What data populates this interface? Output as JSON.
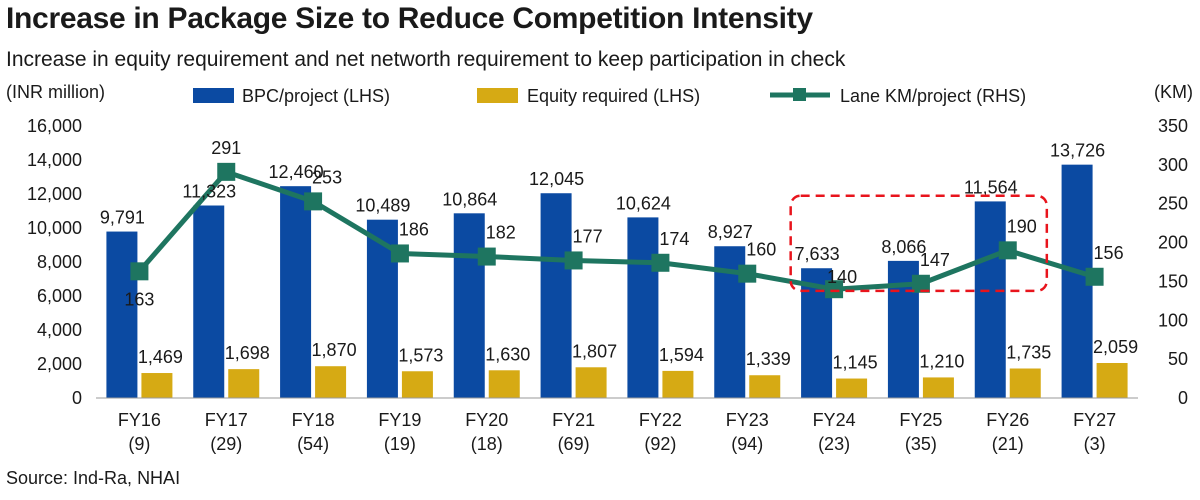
{
  "title": "Increase in Package Size to Reduce Competition Intensity",
  "subtitle": "Increase in equity requirement and net networth requirement to keep participation in check",
  "source": "Source: Ind-Ra, NHAI",
  "chart_data": {
    "type": "bar",
    "left_axis_unit": "(INR million)",
    "right_axis_unit": "(KM)",
    "categories": [
      "FY16",
      "FY17",
      "FY18",
      "FY19",
      "FY20",
      "FY21",
      "FY22",
      "FY23",
      "FY24",
      "FY25",
      "FY26",
      "FY27"
    ],
    "category_counts": [
      "(9)",
      "(29)",
      "(54)",
      "(19)",
      "(18)",
      "(69)",
      "(92)",
      "(94)",
      "(23)",
      "(35)",
      "(21)",
      "(3)"
    ],
    "y_left": {
      "range": [
        0,
        16000
      ],
      "ticks": [
        "0",
        "2,000",
        "4,000",
        "6,000",
        "8,000",
        "10,000",
        "12,000",
        "14,000",
        "16,000"
      ]
    },
    "y_right": {
      "range": [
        0,
        350
      ],
      "ticks": [
        "0",
        "50",
        "100",
        "150",
        "200",
        "250",
        "300",
        "350"
      ]
    },
    "series": [
      {
        "name": "BPC/project (LHS)",
        "kind": "bar",
        "axis": "left",
        "color": "#0b4aa2",
        "values": [
          9791,
          11323,
          12460,
          10489,
          10864,
          12045,
          10624,
          8927,
          7633,
          8066,
          11564,
          13726
        ],
        "labels": [
          "9,791",
          "11,323",
          "12,460",
          "10,489",
          "10,864",
          "12,045",
          "10,624",
          "8,927",
          "7,633",
          "8,066",
          "11,564",
          "13,726"
        ]
      },
      {
        "name": "Equity required (LHS)",
        "kind": "bar",
        "axis": "left",
        "color": "#d6aa14",
        "values": [
          1469,
          1698,
          1870,
          1573,
          1630,
          1807,
          1594,
          1339,
          1145,
          1210,
          1735,
          2059
        ],
        "labels": [
          "1,469",
          "1,698",
          "1,870",
          "1,573",
          "1,630",
          "1,807",
          "1,594",
          "1,339",
          "1,145",
          "1,210",
          "1,735",
          "2,059"
        ]
      },
      {
        "name": "Lane KM/project (RHS)",
        "kind": "line",
        "axis": "right",
        "color": "#1e7560",
        "values": [
          163,
          291,
          253,
          186,
          182,
          177,
          174,
          160,
          140,
          147,
          190,
          156
        ],
        "labels": [
          "163",
          "291",
          "253",
          "186",
          "182",
          "177",
          "174",
          "160",
          "140",
          "147",
          "190",
          "156"
        ]
      }
    ],
    "highlight": {
      "categories": [
        "FY24",
        "FY26"
      ],
      "color": "#e8141c",
      "style": "dashed"
    },
    "grid": false,
    "legend_position": "top"
  }
}
